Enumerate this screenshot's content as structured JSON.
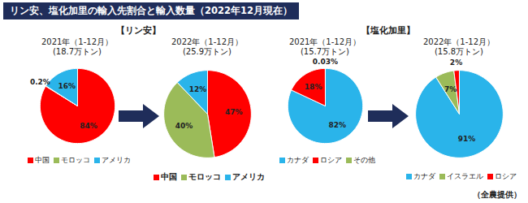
{
  "title": "リン安、塩化加里の輸入先割合と輸入数量（2022年12月現在）",
  "group_labels": [
    "【リン安】",
    "【塩化加里】"
  ],
  "source": "（全農提供）",
  "chart_data": [
    {
      "type": "pie",
      "title": "2021年（1-12月）",
      "subtitle": "(18.7万トン)",
      "categories": [
        "中国",
        "モロッコ",
        "アメリカ"
      ],
      "values": [
        84,
        0.2,
        16
      ],
      "value_labels": [
        "84%",
        "0.2%",
        "16%"
      ],
      "colors": [
        "#ff0000",
        "#9bbb59",
        "#2ab4ea"
      ],
      "data_labels": true,
      "legend": "bottom"
    },
    {
      "type": "pie",
      "title": "2022年（1-12月）",
      "subtitle": "(25.9万トン)",
      "categories": [
        "中国",
        "モロッコ",
        "アメリカ"
      ],
      "values": [
        47,
        40,
        12
      ],
      "value_labels": [
        "47%",
        "40%",
        "12%"
      ],
      "colors": [
        "#ff0000",
        "#9bbb59",
        "#2ab4ea"
      ],
      "data_labels": true,
      "legend": "bottom"
    },
    {
      "type": "pie",
      "title": "2021年（1-12月）",
      "subtitle": "(15.7万トン)",
      "categories": [
        "カナダ",
        "ロシア",
        "その他"
      ],
      "values": [
        82,
        18,
        0.03
      ],
      "value_labels": [
        "82%",
        "18%",
        "0.03%"
      ],
      "colors": [
        "#2ab4ea",
        "#ff0000",
        "#9bbb59"
      ],
      "data_labels": true,
      "legend": "bottom"
    },
    {
      "type": "pie",
      "title": "2022年（1-12月）",
      "subtitle": "(15.8万トン)",
      "categories": [
        "カナダ",
        "イスラエル",
        "ロシア"
      ],
      "values": [
        91,
        7,
        2
      ],
      "value_labels": [
        "91%",
        "7%",
        "2%"
      ],
      "colors": [
        "#2ab4ea",
        "#9bbb59",
        "#ff0000"
      ],
      "data_labels": true,
      "legend": "bottom"
    }
  ]
}
